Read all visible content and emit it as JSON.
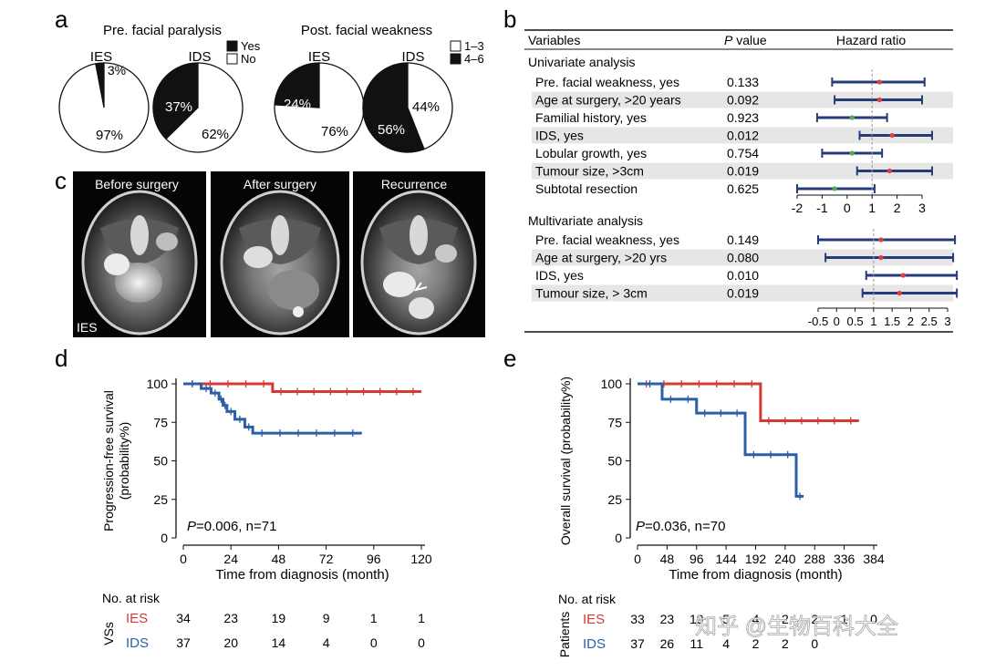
{
  "panel_letters": {
    "a": "a",
    "b": "b",
    "c": "c",
    "d": "d",
    "e": "e"
  },
  "panel_a": {
    "left_title": "Pre. facial paralysis",
    "right_title": "Post. facial weakness",
    "legend_left": [
      "Yes",
      "No"
    ],
    "legend_right": [
      "1–3",
      "4–6"
    ],
    "pies": [
      {
        "label": "IES",
        "dark": 3,
        "light": 97,
        "dark_text": "3%",
        "light_text": "97%"
      },
      {
        "label": "IDS",
        "dark": 37,
        "light": 62,
        "dark_text": "37%",
        "light_text": "62%"
      },
      {
        "label": "IES",
        "dark": 24,
        "light": 76,
        "dark_text": "24%",
        "light_text": "76%"
      },
      {
        "label": "IDS",
        "dark": 56,
        "light": 44,
        "dark_text": "56%",
        "light_text": "44%"
      }
    ],
    "colors": {
      "dark": "#111111",
      "light": "#ffffff"
    }
  },
  "panel_b": {
    "headers": {
      "variables": "Variables",
      "p_italic": "P",
      "p_rest": " value",
      "hr": "Hazard ratio"
    },
    "univariate_title": "Univariate analysis",
    "multivariate_title": "Multivariate analysis",
    "univariate_rows": [
      {
        "name": "Pre. facial weakness, yes",
        "p": "0.133",
        "lo": -0.6,
        "est": 1.3,
        "hi": 3.1,
        "shade": false,
        "color": "#e04040"
      },
      {
        "name": "Age at surgery, >20 years",
        "p": "0.092",
        "lo": -0.5,
        "est": 1.3,
        "hi": 3.0,
        "shade": true,
        "color": "#e04040"
      },
      {
        "name": "Familial history, yes",
        "p": "0.923",
        "lo": -1.2,
        "est": 0.2,
        "hi": 1.6,
        "shade": false,
        "color": "#50b050"
      },
      {
        "name": "IDS, yes",
        "p": "0.012",
        "lo": 0.5,
        "est": 1.8,
        "hi": 3.4,
        "shade": true,
        "color": "#e04040"
      },
      {
        "name": "Lobular growth, yes",
        "p": "0.754",
        "lo": -1.0,
        "est": 0.2,
        "hi": 1.4,
        "shade": false,
        "color": "#50b050"
      },
      {
        "name": "Tumour size, >3cm",
        "p": "0.019",
        "lo": 0.4,
        "est": 1.7,
        "hi": 3.4,
        "shade": true,
        "color": "#e04040"
      },
      {
        "name": "Subtotal resection",
        "p": "0.625",
        "lo": -2.0,
        "est": -0.5,
        "hi": 1.1,
        "shade": false,
        "color": "#50b050"
      }
    ],
    "univariate_ticks": [
      "-2",
      "-1",
      "0",
      "1",
      "2",
      "3"
    ],
    "multivariate_rows": [
      {
        "name": "Pre. facial weakness, yes",
        "p": "0.149",
        "lo": -0.5,
        "est": 1.2,
        "hi": 3.2,
        "shade": false,
        "color": "#e04040"
      },
      {
        "name": "Age at surgery, >20 yrs",
        "p": "0.080",
        "lo": -0.3,
        "est": 1.2,
        "hi": 3.15,
        "shade": true,
        "color": "#e04040"
      },
      {
        "name": "IDS, yes",
        "p": "0.010",
        "lo": 0.8,
        "est": 1.8,
        "hi": 3.25,
        "shade": false,
        "color": "#e04040"
      },
      {
        "name": "Tumour size, > 3cm",
        "p": "0.019",
        "lo": 0.7,
        "est": 1.7,
        "hi": 3.25,
        "shade": true,
        "color": "#e04040"
      }
    ],
    "multivariate_ticks": [
      "-0.5",
      "0",
      "0.5",
      "1",
      "1.5",
      "2",
      "2.5",
      "3"
    ]
  },
  "panel_c": {
    "labels": [
      "Before surgery",
      "After surgery",
      "Recurrence"
    ],
    "corner_label": "IES"
  },
  "chart_data": [
    {
      "type": "line",
      "title": "",
      "ylabel": "Progression-free survival (probability%)",
      "ylabel_lines": [
        "Progression-free survival",
        "(probability%)"
      ],
      "xlabel": "Time from diagnosis (month)",
      "xlim": [
        0,
        120
      ],
      "ylim": [
        0,
        100
      ],
      "xticks": [
        "0",
        "24",
        "48",
        "72",
        "96",
        "120"
      ],
      "yticks": [
        "0",
        "25",
        "50",
        "75",
        "100"
      ],
      "annotation_italic": "P",
      "annotation_rest": "=0.006, n=71",
      "series": [
        {
          "name": "IES",
          "color": "#d63a35",
          "x": [
            0,
            45,
            45,
            120
          ],
          "y": [
            100,
            100,
            95,
            95
          ]
        },
        {
          "name": "IDS",
          "color": "#2b5fa8",
          "x": [
            0,
            9,
            9,
            14,
            14,
            18,
            18,
            20,
            20,
            22,
            22,
            26,
            26,
            31,
            31,
            35,
            35,
            90
          ],
          "y": [
            100,
            100,
            97,
            97,
            94,
            94,
            90,
            90,
            86,
            86,
            82,
            82,
            77,
            77,
            72,
            72,
            68,
            68
          ]
        }
      ],
      "risk_table": {
        "header": "No. at risk",
        "side_label": "VSs",
        "rows": [
          {
            "name": "IES",
            "color": "#d63a35",
            "values": [
              "34",
              "23",
              "19",
              "9",
              "1",
              "1"
            ]
          },
          {
            "name": "IDS",
            "color": "#2b5fa8",
            "values": [
              "37",
              "20",
              "14",
              "4",
              "0",
              "0"
            ]
          }
        ]
      }
    },
    {
      "type": "line",
      "title": "",
      "ylabel": "Overall survival (probability%)",
      "xlabel": "Time from diagnosis (month)",
      "xlim": [
        0,
        384
      ],
      "ylim": [
        0,
        100
      ],
      "xticks": [
        "0",
        "48",
        "96",
        "144",
        "192",
        "240",
        "288",
        "336",
        "384"
      ],
      "yticks": [
        "0",
        "25",
        "50",
        "75",
        "100"
      ],
      "annotation_italic": "P",
      "annotation_rest": "=0.036, n=70",
      "series": [
        {
          "name": "IES",
          "color": "#d63a35",
          "x": [
            0,
            200,
            200,
            360
          ],
          "y": [
            100,
            100,
            76,
            76
          ]
        },
        {
          "name": "IDS",
          "color": "#2b5fa8",
          "x": [
            0,
            40,
            40,
            96,
            96,
            175,
            175,
            258,
            258,
            270
          ],
          "y": [
            100,
            100,
            90,
            90,
            81,
            81,
            54,
            54,
            27,
            27
          ]
        }
      ],
      "risk_table": {
        "header": "No. at risk",
        "side_label": "Patients",
        "rows": [
          {
            "name": "IES",
            "color": "#d63a35",
            "values": [
              "33",
              "23",
              "19",
              "5",
              "4",
              "2",
              "2",
              "1",
              "0"
            ]
          },
          {
            "name": "IDS",
            "color": "#2b5fa8",
            "values": [
              "37",
              "26",
              "11",
              "4",
              "2",
              "2",
              "0"
            ]
          }
        ]
      }
    }
  ],
  "watermark": "知乎 @生物百科大全"
}
